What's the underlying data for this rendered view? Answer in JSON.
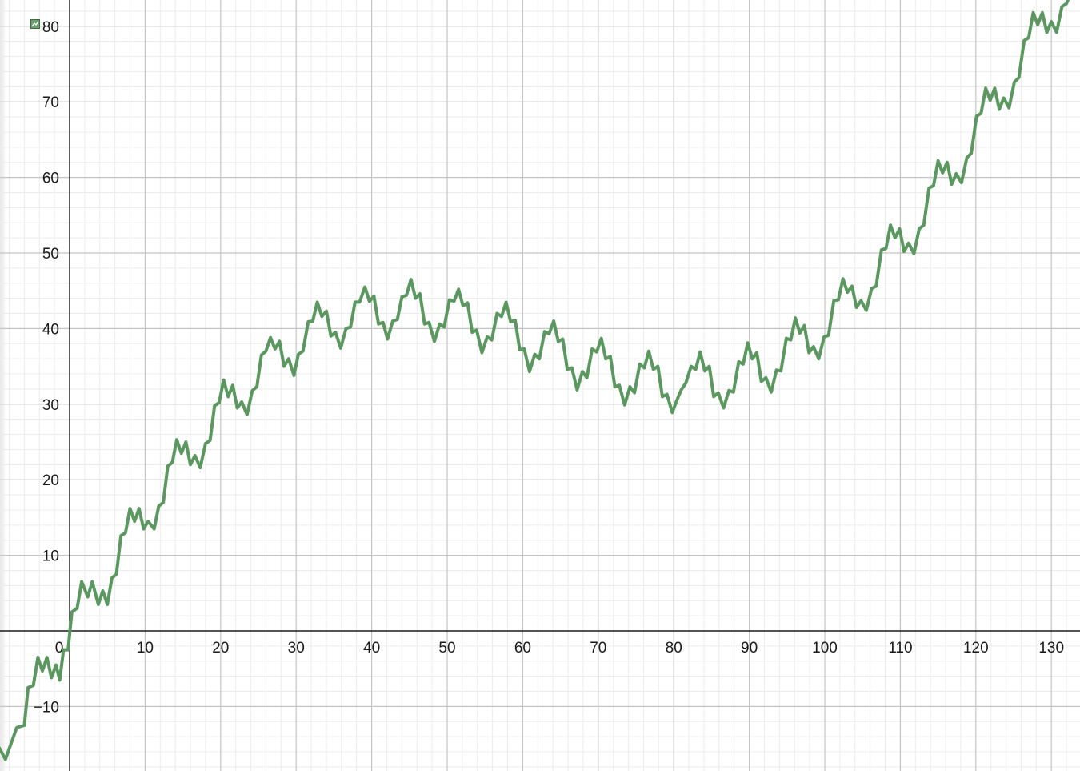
{
  "chart_data": {
    "type": "line",
    "title": "",
    "xlabel": "",
    "ylabel": "",
    "xlim": [
      -9.3,
      134
    ],
    "ylim": [
      -18.4,
      83.5
    ],
    "grid": true,
    "minor_grid": true,
    "x_ticks": [
      0,
      10,
      20,
      30,
      40,
      50,
      60,
      70,
      80,
      90,
      100,
      110,
      120,
      130
    ],
    "y_ticks": [
      -10,
      10,
      20,
      30,
      40,
      50,
      60,
      70,
      80
    ],
    "x_tick_labels": [
      "0",
      "10",
      "20",
      "30",
      "40",
      "50",
      "60",
      "70",
      "80",
      "90",
      "100",
      "110",
      "120",
      "130"
    ],
    "y_tick_labels": [
      "−10",
      "10",
      "20",
      "30",
      "40",
      "50",
      "60",
      "70",
      "80"
    ],
    "series": [
      {
        "color": "#5a9860",
        "points": [
          [
            -9.3,
            -15.5
          ],
          [
            -8.5,
            -17.0
          ],
          [
            -7.0,
            -12.8
          ],
          [
            -6.0,
            -12.5
          ],
          [
            -5.5,
            -7.5
          ],
          [
            -4.8,
            -7.2
          ],
          [
            -4.2,
            -3.5
          ],
          [
            -3.6,
            -5.3
          ],
          [
            -3.0,
            -3.5
          ],
          [
            -2.4,
            -6.2
          ],
          [
            -1.8,
            -4.5
          ],
          [
            -1.3,
            -6.5
          ],
          [
            -0.8,
            -2.5
          ],
          [
            -0.2,
            -2.5
          ],
          [
            0.3,
            2.5
          ],
          [
            1.0,
            3.0
          ],
          [
            1.6,
            6.5
          ],
          [
            2.4,
            4.5
          ],
          [
            3.0,
            6.5
          ],
          [
            3.8,
            3.5
          ],
          [
            4.4,
            5.3
          ],
          [
            5.0,
            3.5
          ],
          [
            5.6,
            7.0
          ],
          [
            6.2,
            7.5
          ],
          [
            6.8,
            12.6
          ],
          [
            7.4,
            13.0
          ],
          [
            8.0,
            16.2
          ],
          [
            8.6,
            14.5
          ],
          [
            9.2,
            16.2
          ],
          [
            9.8,
            13.5
          ],
          [
            10.4,
            14.5
          ],
          [
            11.2,
            13.5
          ],
          [
            11.8,
            16.5
          ],
          [
            12.4,
            17.0
          ],
          [
            13.0,
            21.8
          ],
          [
            13.6,
            22.3
          ],
          [
            14.2,
            25.3
          ],
          [
            14.8,
            23.5
          ],
          [
            15.4,
            25.0
          ],
          [
            16.0,
            22.0
          ],
          [
            16.6,
            23.2
          ],
          [
            17.3,
            21.6
          ],
          [
            18.0,
            24.8
          ],
          [
            18.6,
            25.2
          ],
          [
            19.2,
            29.8
          ],
          [
            19.8,
            30.2
          ],
          [
            20.4,
            33.2
          ],
          [
            21.0,
            31.0
          ],
          [
            21.6,
            32.5
          ],
          [
            22.2,
            29.5
          ],
          [
            22.8,
            30.3
          ],
          [
            23.5,
            28.6
          ],
          [
            24.2,
            31.8
          ],
          [
            24.8,
            32.3
          ],
          [
            25.4,
            36.5
          ],
          [
            26.0,
            37.0
          ],
          [
            26.6,
            38.8
          ],
          [
            27.2,
            37.3
          ],
          [
            27.8,
            38.3
          ],
          [
            28.4,
            35.0
          ],
          [
            29.0,
            36.0
          ],
          [
            29.7,
            33.8
          ],
          [
            30.3,
            36.6
          ],
          [
            30.9,
            37.0
          ],
          [
            31.6,
            40.9
          ],
          [
            32.2,
            41.0
          ],
          [
            32.8,
            43.5
          ],
          [
            33.4,
            41.6
          ],
          [
            34.0,
            42.3
          ],
          [
            34.6,
            39.0
          ],
          [
            35.2,
            39.5
          ],
          [
            35.9,
            37.4
          ],
          [
            36.6,
            40.0
          ],
          [
            37.2,
            40.2
          ],
          [
            37.8,
            43.5
          ],
          [
            38.4,
            43.5
          ],
          [
            39.1,
            45.5
          ],
          [
            39.7,
            43.6
          ],
          [
            40.3,
            44.3
          ],
          [
            40.9,
            40.6
          ],
          [
            41.5,
            40.8
          ],
          [
            42.1,
            38.6
          ],
          [
            42.8,
            41.0
          ],
          [
            43.4,
            41.2
          ],
          [
            44.0,
            44.2
          ],
          [
            44.6,
            44.4
          ],
          [
            45.2,
            46.5
          ],
          [
            45.8,
            44.0
          ],
          [
            46.4,
            44.6
          ],
          [
            47.0,
            40.6
          ],
          [
            47.6,
            40.8
          ],
          [
            48.3,
            38.3
          ],
          [
            49.0,
            40.6
          ],
          [
            49.6,
            40.2
          ],
          [
            50.3,
            43.8
          ],
          [
            50.9,
            43.6
          ],
          [
            51.5,
            45.2
          ],
          [
            52.1,
            43.0
          ],
          [
            52.7,
            43.4
          ],
          [
            53.3,
            39.5
          ],
          [
            53.9,
            39.8
          ],
          [
            54.6,
            36.8
          ],
          [
            55.3,
            38.9
          ],
          [
            55.9,
            38.5
          ],
          [
            56.6,
            42.0
          ],
          [
            57.2,
            41.6
          ],
          [
            57.8,
            43.5
          ],
          [
            58.4,
            40.9
          ],
          [
            59.0,
            41.1
          ],
          [
            59.6,
            37.2
          ],
          [
            60.2,
            37.3
          ],
          [
            60.9,
            34.3
          ],
          [
            61.6,
            36.6
          ],
          [
            62.2,
            36.0
          ],
          [
            62.9,
            39.6
          ],
          [
            63.5,
            39.3
          ],
          [
            64.1,
            41.0
          ],
          [
            64.7,
            38.3
          ],
          [
            65.3,
            38.6
          ],
          [
            65.9,
            34.6
          ],
          [
            66.5,
            34.8
          ],
          [
            67.2,
            31.9
          ],
          [
            67.9,
            34.3
          ],
          [
            68.5,
            33.5
          ],
          [
            69.2,
            37.3
          ],
          [
            69.8,
            36.9
          ],
          [
            70.4,
            38.7
          ],
          [
            71.0,
            36.0
          ],
          [
            71.6,
            36.3
          ],
          [
            72.2,
            32.3
          ],
          [
            72.8,
            32.5
          ],
          [
            73.5,
            29.9
          ],
          [
            74.2,
            32.3
          ],
          [
            74.8,
            31.5
          ],
          [
            75.5,
            35.3
          ],
          [
            76.1,
            34.8
          ],
          [
            76.7,
            37.0
          ],
          [
            77.3,
            34.6
          ],
          [
            77.9,
            35.0
          ],
          [
            78.5,
            31.0
          ],
          [
            79.1,
            31.3
          ],
          [
            79.8,
            28.9
          ],
          [
            80.4,
            30.5
          ],
          [
            81.0,
            31.9
          ],
          [
            81.6,
            32.8
          ],
          [
            82.3,
            35.0
          ],
          [
            82.9,
            34.6
          ],
          [
            83.5,
            36.9
          ],
          [
            84.1,
            34.4
          ],
          [
            84.7,
            35.0
          ],
          [
            85.3,
            31.0
          ],
          [
            85.9,
            31.5
          ],
          [
            86.6,
            29.5
          ],
          [
            87.3,
            31.8
          ],
          [
            87.9,
            31.6
          ],
          [
            88.6,
            35.6
          ],
          [
            89.2,
            35.3
          ],
          [
            89.8,
            38.1
          ],
          [
            90.4,
            36.0
          ],
          [
            91.0,
            36.8
          ],
          [
            91.6,
            33.0
          ],
          [
            92.2,
            33.5
          ],
          [
            92.9,
            31.6
          ],
          [
            93.6,
            34.5
          ],
          [
            94.2,
            34.4
          ],
          [
            94.9,
            38.7
          ],
          [
            95.5,
            38.5
          ],
          [
            96.1,
            41.4
          ],
          [
            96.7,
            39.4
          ],
          [
            97.3,
            40.4
          ],
          [
            97.9,
            36.8
          ],
          [
            98.5,
            37.6
          ],
          [
            99.2,
            36.0
          ],
          [
            99.9,
            38.9
          ],
          [
            100.5,
            39.1
          ],
          [
            101.2,
            43.7
          ],
          [
            101.8,
            43.8
          ],
          [
            102.4,
            46.6
          ],
          [
            103.0,
            44.8
          ],
          [
            103.6,
            45.6
          ],
          [
            104.2,
            42.8
          ],
          [
            104.8,
            43.7
          ],
          [
            105.5,
            42.4
          ],
          [
            106.2,
            45.3
          ],
          [
            106.8,
            45.6
          ],
          [
            107.5,
            50.4
          ],
          [
            108.1,
            50.6
          ],
          [
            108.7,
            53.7
          ],
          [
            109.3,
            52.0
          ],
          [
            109.9,
            53.2
          ],
          [
            110.5,
            50.2
          ],
          [
            111.1,
            51.3
          ],
          [
            111.8,
            49.9
          ],
          [
            112.5,
            53.2
          ],
          [
            113.1,
            53.7
          ],
          [
            113.8,
            58.6
          ],
          [
            114.4,
            58.9
          ],
          [
            115.0,
            62.2
          ],
          [
            115.6,
            60.6
          ],
          [
            116.2,
            62.0
          ],
          [
            116.8,
            59.1
          ],
          [
            117.4,
            60.5
          ],
          [
            118.1,
            59.3
          ],
          [
            118.8,
            62.6
          ],
          [
            119.4,
            63.2
          ],
          [
            120.1,
            68.1
          ],
          [
            120.7,
            68.5
          ],
          [
            121.3,
            71.8
          ],
          [
            121.9,
            70.2
          ],
          [
            122.5,
            71.8
          ],
          [
            123.1,
            69.0
          ],
          [
            123.7,
            70.5
          ],
          [
            124.4,
            69.2
          ],
          [
            125.1,
            72.6
          ],
          [
            125.7,
            73.2
          ],
          [
            126.4,
            78.1
          ],
          [
            127.0,
            78.5
          ],
          [
            127.6,
            81.8
          ],
          [
            128.2,
            80.2
          ],
          [
            128.8,
            81.8
          ],
          [
            129.4,
            79.2
          ],
          [
            130.0,
            80.6
          ],
          [
            130.7,
            79.2
          ],
          [
            131.4,
            82.6
          ],
          [
            132.0,
            83.0
          ],
          [
            132.6,
            84.5
          ]
        ]
      }
    ]
  }
}
